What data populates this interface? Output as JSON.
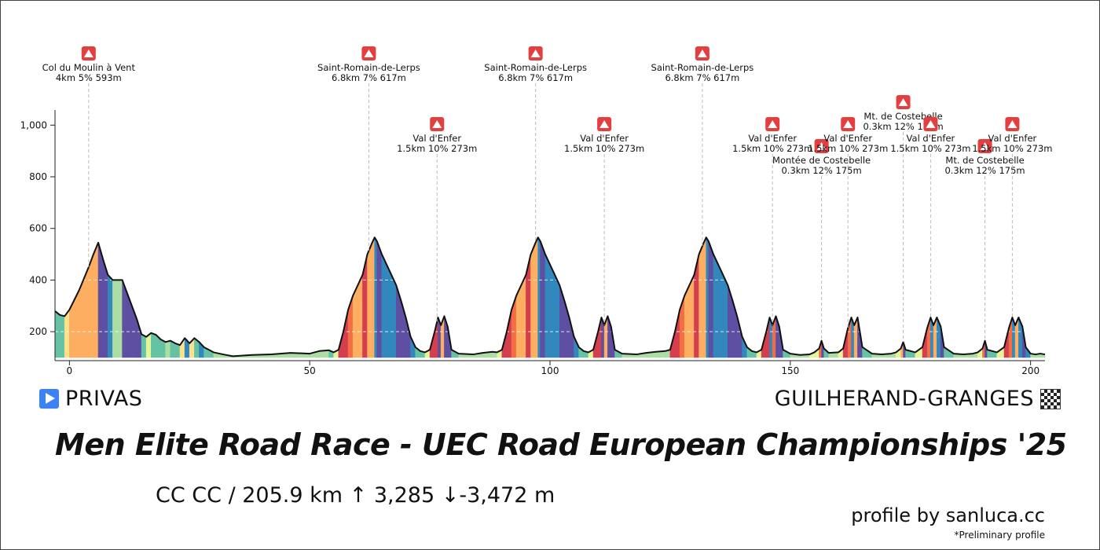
{
  "header": {
    "start_town": "PRIVAS",
    "finish_town": "GUILHERAND-GRANGES",
    "start_icon": "start-play-icon",
    "finish_icon": "checkered-flag-icon"
  },
  "race": {
    "title": "Men Elite Road Race - UEC Road European Championships '25",
    "stats": "CC CC / 205.9 km  ↑ 3,285 ↓-3,472 m"
  },
  "footer": {
    "credit": "profile by sanluca.cc",
    "note": "*Preliminary profile"
  },
  "colors": {
    "profile_outline": "#111111",
    "climb_marker": "#e53e3e",
    "grade_palette": [
      "#9e0142",
      "#d53e4f",
      "#f46d43",
      "#fdae61",
      "#fee08b",
      "#e6f598",
      "#abdda4",
      "#66c2a5",
      "#3288bd",
      "#5e4fa2"
    ]
  },
  "chart_data": {
    "type": "area",
    "xlabel": "",
    "ylabel": "",
    "xlim": [
      -3,
      203
    ],
    "ylim": [
      100,
      1150
    ],
    "x_ticks": [
      0,
      50,
      100,
      150,
      200
    ],
    "y_ticks": [
      200,
      400,
      600,
      800,
      1000
    ],
    "y_tick_labels": [
      "200",
      "400",
      "600",
      "800",
      "1,000"
    ],
    "grid": "horizontal-dashed",
    "profile": [
      [
        -3,
        280
      ],
      [
        -2,
        265
      ],
      [
        -1,
        260
      ],
      [
        0,
        285
      ],
      [
        2,
        360
      ],
      [
        4,
        450
      ],
      [
        5,
        500
      ],
      [
        6,
        545
      ],
      [
        7,
        480
      ],
      [
        8,
        420
      ],
      [
        9,
        400
      ],
      [
        10,
        400
      ],
      [
        11,
        400
      ],
      [
        12,
        350
      ],
      [
        14,
        250
      ],
      [
        15,
        190
      ],
      [
        16,
        180
      ],
      [
        17,
        195
      ],
      [
        18,
        188
      ],
      [
        19,
        170
      ],
      [
        20,
        160
      ],
      [
        21,
        165
      ],
      [
        22,
        155
      ],
      [
        23,
        148
      ],
      [
        24,
        175
      ],
      [
        25,
        155
      ],
      [
        26,
        175
      ],
      [
        27,
        160
      ],
      [
        28,
        140
      ],
      [
        30,
        120
      ],
      [
        32,
        112
      ],
      [
        34,
        105
      ],
      [
        38,
        110
      ],
      [
        42,
        112
      ],
      [
        46,
        118
      ],
      [
        50,
        115
      ],
      [
        52,
        125
      ],
      [
        54,
        128
      ],
      [
        55,
        120
      ],
      [
        56,
        130
      ],
      [
        57,
        200
      ],
      [
        58,
        285
      ],
      [
        59,
        340
      ],
      [
        60,
        380
      ],
      [
        61,
        420
      ],
      [
        62,
        500
      ],
      [
        63,
        545
      ],
      [
        63.5,
        565
      ],
      [
        64,
        550
      ],
      [
        65,
        500
      ],
      [
        66,
        460
      ],
      [
        67,
        420
      ],
      [
        68,
        380
      ],
      [
        69,
        320
      ],
      [
        70,
        255
      ],
      [
        71,
        180
      ],
      [
        72,
        140
      ],
      [
        73,
        125
      ],
      [
        74,
        120
      ],
      [
        75,
        130
      ],
      [
        76,
        200
      ],
      [
        76.7,
        255
      ],
      [
        77.3,
        225
      ],
      [
        78,
        260
      ],
      [
        78.7,
        220
      ],
      [
        79.5,
        130
      ],
      [
        81,
        115
      ],
      [
        84,
        112
      ],
      [
        86,
        118
      ],
      [
        88,
        122
      ],
      [
        89,
        120
      ],
      [
        90,
        130
      ],
      [
        91,
        200
      ],
      [
        92,
        285
      ],
      [
        93,
        340
      ],
      [
        94,
        380
      ],
      [
        95,
        420
      ],
      [
        96,
        500
      ],
      [
        97,
        545
      ],
      [
        97.5,
        565
      ],
      [
        98,
        550
      ],
      [
        99,
        500
      ],
      [
        100,
        460
      ],
      [
        101,
        420
      ],
      [
        102,
        380
      ],
      [
        103,
        320
      ],
      [
        104,
        255
      ],
      [
        105,
        180
      ],
      [
        106,
        140
      ],
      [
        107,
        125
      ],
      [
        108,
        120
      ],
      [
        109,
        130
      ],
      [
        110,
        200
      ],
      [
        110.7,
        255
      ],
      [
        111.3,
        225
      ],
      [
        112,
        260
      ],
      [
        112.7,
        220
      ],
      [
        113.5,
        130
      ],
      [
        115,
        115
      ],
      [
        118,
        112
      ],
      [
        120,
        118
      ],
      [
        122,
        122
      ],
      [
        124,
        125
      ],
      [
        125,
        130
      ],
      [
        126,
        200
      ],
      [
        127,
        285
      ],
      [
        128,
        340
      ],
      [
        129,
        380
      ],
      [
        130,
        420
      ],
      [
        131,
        500
      ],
      [
        132,
        545
      ],
      [
        132.5,
        565
      ],
      [
        133,
        550
      ],
      [
        134,
        500
      ],
      [
        135,
        460
      ],
      [
        136,
        420
      ],
      [
        137,
        380
      ],
      [
        138,
        320
      ],
      [
        139,
        255
      ],
      [
        140,
        180
      ],
      [
        141,
        140
      ],
      [
        142,
        125
      ],
      [
        143,
        120
      ],
      [
        144,
        130
      ],
      [
        145,
        200
      ],
      [
        145.7,
        255
      ],
      [
        146.3,
        225
      ],
      [
        147,
        260
      ],
      [
        147.7,
        220
      ],
      [
        148.5,
        130
      ],
      [
        150,
        115
      ],
      [
        152,
        110
      ],
      [
        154,
        112
      ],
      [
        155,
        120
      ],
      [
        156,
        135
      ],
      [
        156.5,
        165
      ],
      [
        157,
        135
      ],
      [
        158,
        118
      ],
      [
        160,
        120
      ],
      [
        161,
        135
      ],
      [
        162,
        215
      ],
      [
        162.7,
        255
      ],
      [
        163.3,
        225
      ],
      [
        164,
        255
      ],
      [
        165,
        140
      ],
      [
        167,
        115
      ],
      [
        169,
        112
      ],
      [
        171,
        115
      ],
      [
        172,
        120
      ],
      [
        173,
        135
      ],
      [
        173.5,
        160
      ],
      [
        174,
        130
      ],
      [
        176,
        120
      ],
      [
        177.5,
        140
      ],
      [
        178.5,
        215
      ],
      [
        179.2,
        255
      ],
      [
        179.8,
        225
      ],
      [
        180.5,
        255
      ],
      [
        181.3,
        220
      ],
      [
        182,
        140
      ],
      [
        184,
        115
      ],
      [
        186,
        112
      ],
      [
        188,
        115
      ],
      [
        189,
        120
      ],
      [
        190,
        135
      ],
      [
        190.5,
        165
      ],
      [
        191,
        130
      ],
      [
        193,
        120
      ],
      [
        194.5,
        140
      ],
      [
        195.5,
        215
      ],
      [
        196.2,
        255
      ],
      [
        196.8,
        225
      ],
      [
        197.5,
        255
      ],
      [
        198.3,
        220
      ],
      [
        199,
        140
      ],
      [
        200,
        115
      ],
      [
        201,
        112
      ],
      [
        202,
        115
      ],
      [
        203,
        112
      ]
    ],
    "climbs": [
      {
        "km": 4,
        "name": "Col du Moulin à Vent",
        "stats": "4km 5% 593m",
        "tier": 0,
        "icon": "mountain-climb-icon"
      },
      {
        "km": 62.3,
        "name": "Saint-Romain-de-Lerps",
        "stats": "6.8km 7% 617m",
        "tier": 0,
        "icon": "mountain-climb-icon"
      },
      {
        "km": 76.5,
        "name": "Val d'Enfer",
        "stats": "1.5km 10% 273m",
        "tier": 2,
        "icon": "mountain-climb-icon"
      },
      {
        "km": 97,
        "name": "Saint-Romain-de-Lerps",
        "stats": "6.8km 7% 617m",
        "tier": 0,
        "icon": "mountain-climb-icon"
      },
      {
        "km": 111.3,
        "name": "Val d'Enfer",
        "stats": "1.5km 10% 273m",
        "tier": 2,
        "icon": "mountain-climb-icon"
      },
      {
        "km": 131.7,
        "name": "Saint-Romain-de-Lerps",
        "stats": "6.8km 7% 617m",
        "tier": 0,
        "icon": "mountain-climb-icon"
      },
      {
        "km": 146.3,
        "name": "Val d'Enfer",
        "stats": "1.5km 10% 273m",
        "tier": 2,
        "icon": "mountain-climb-icon"
      },
      {
        "km": 156.5,
        "name": "Montée de Costebelle",
        "stats": "0.3km 12% 175m",
        "tier": 3,
        "icon": "mountain-climb-icon"
      },
      {
        "km": 162,
        "name": "Val d'Enfer",
        "stats": "1.5km 10% 273m",
        "tier": 2,
        "icon": "mountain-climb-icon"
      },
      {
        "km": 173.5,
        "name": "Mt. de Costebelle",
        "stats": "0.3km 12% 175m",
        "tier": 1,
        "icon": "mountain-climb-icon"
      },
      {
        "km": 179.2,
        "name": "Val d'Enfer",
        "stats": "1.5km 10% 273m",
        "tier": 2,
        "icon": "mountain-climb-icon"
      },
      {
        "km": 190.5,
        "name": "Mt. de Costebelle",
        "stats": "0.3km 12% 175m",
        "tier": 3,
        "icon": "mountain-climb-icon"
      },
      {
        "km": 196.2,
        "name": "Val d'Enfer",
        "stats": "1.5km 10% 273m",
        "tier": 2,
        "icon": "mountain-climb-icon"
      }
    ]
  }
}
